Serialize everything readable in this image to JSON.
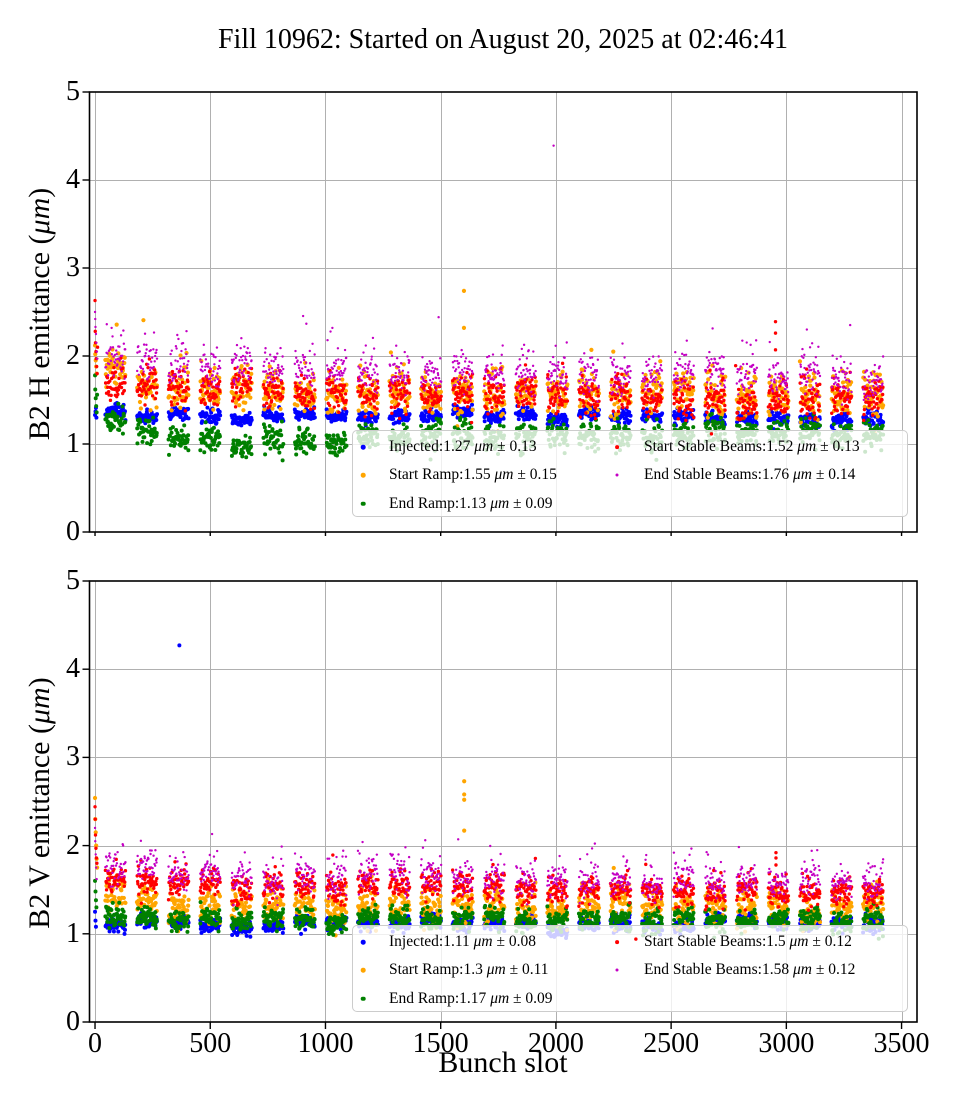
{
  "figure": {
    "title": "Fill 10962: Started on August 20, 2025 at 02:46:41",
    "unit": "μm",
    "grid_color": "#b0b0b0",
    "spine_color": "#000000",
    "legend_bg": "rgba(255,255,255,0.8)",
    "legend_border": "#cccccc",
    "colors": {
      "injected": "#0000ff",
      "start_ramp": "#ffa500",
      "end_ramp": "#008000",
      "start_stable": "#ff0000",
      "end_stable": "#c400c4"
    }
  },
  "chart_data": [
    {
      "type": "scatter",
      "ylabel": "B2 H emittance (μm)",
      "xlabel": "",
      "xlim": [
        -24,
        3567
      ],
      "ylim": [
        0,
        5
      ],
      "xticks": [
        0,
        500,
        1000,
        1500,
        2000,
        2500,
        3000,
        3500
      ],
      "yticks": [
        0,
        1,
        2,
        3,
        4,
        5
      ],
      "grid": true,
      "legend_position": "lower-right",
      "trains": {
        "first_slot": 45,
        "period": 137,
        "count": 25,
        "bunches": 44,
        "slot_step": 2
      },
      "series": [
        {
          "key": "injected",
          "legend": "Injected:1.27 μm ± 0.13",
          "mean": 1.27,
          "std": 0.13,
          "band": {
            "center": 1.32,
            "sigma": 0.038,
            "trend": -0.035,
            "start_boost": 0.03,
            "tail_prob": 0,
            "tail_scale": 0
          },
          "edge_stack": [
            [
              0,
              1.33
            ],
            [
              2,
              1.37
            ],
            [
              4,
              1.41
            ],
            [
              6,
              1.3
            ]
          ]
        },
        {
          "key": "start_ramp",
          "legend": "Start Ramp:1.55 μm ± 0.15",
          "mean": 1.55,
          "std": 0.15,
          "band": {
            "center": 1.56,
            "sigma": 0.12,
            "trend": -0.06,
            "start_boost": 0.22,
            "tail_prob": 0.05,
            "tail_scale": 0.15
          },
          "edge_stack": [
            [
              0,
              2.12
            ],
            [
              1,
              2.02
            ],
            [
              3,
              1.95
            ],
            [
              5,
              1.88
            ],
            [
              7,
              1.8
            ]
          ]
        },
        {
          "key": "end_ramp",
          "legend": "End Ramp:1.13 μm ± 0.09",
          "mean": 1.13,
          "std": 0.09,
          "band": {
            "center": 1.1,
            "sigma": 0.075,
            "trend": 0.06,
            "start_boost": 0.18,
            "dip_amp": -0.07,
            "dip_center": 5,
            "dip_width": 2.5
          },
          "edge_stack": [
            [
              0,
              1.78
            ],
            [
              1,
              1.62
            ],
            [
              3,
              1.52
            ],
            [
              5,
              1.43
            ],
            [
              7,
              1.36
            ],
            [
              9,
              1.56
            ]
          ]
        },
        {
          "key": "start_stable",
          "legend": "Start Stable Beams:1.52 μm ± 0.13",
          "mean": 1.52,
          "std": 0.13,
          "band": {
            "center": 1.55,
            "sigma": 0.095,
            "trend": -0.13,
            "start_boost": 0.1,
            "tail_prob": 0.06,
            "tail_scale": 0.12
          },
          "edge_stack": [
            [
              0,
              2.63
            ],
            [
              1,
              2.28
            ],
            [
              2,
              2.15
            ],
            [
              4,
              2.05
            ],
            [
              5,
              1.97
            ],
            [
              7,
              1.88
            ],
            [
              9,
              1.8
            ],
            [
              11,
              2.1
            ]
          ]
        },
        {
          "key": "end_stable",
          "legend": "End Stable Beams:1.76 μm ± 0.14",
          "mean": 1.76,
          "std": 0.14,
          "band": {
            "center": 1.8,
            "sigma": 0.1,
            "trend": -0.14,
            "start_boost": 0.08,
            "tail_prob": 0.18,
            "tail_scale": 0.15
          },
          "edge_stack": [
            [
              0,
              2.5
            ],
            [
              1,
              2.42
            ],
            [
              2,
              2.33
            ],
            [
              4,
              2.25
            ],
            [
              6,
              2.15
            ],
            [
              8,
              2.05
            ],
            [
              10,
              1.97
            ]
          ]
        }
      ],
      "outliers": [
        {
          "series": "start_ramp",
          "x": 1601,
          "y": 2.74
        },
        {
          "series": "start_ramp",
          "x": 1601,
          "y": 2.32
        },
        {
          "series": "end_stable",
          "x": 1990,
          "y": 4.39
        },
        {
          "series": "start_stable",
          "x": 2953,
          "y": 2.39
        },
        {
          "series": "start_stable",
          "x": 2953,
          "y": 2.26
        },
        {
          "series": "start_stable",
          "x": 2953,
          "y": 2.07
        },
        {
          "series": "start_stable",
          "x": 2780,
          "y": 1.89
        }
      ]
    },
    {
      "type": "scatter",
      "ylabel": "B2 V emittance (μm)",
      "xlabel": "Bunch slot",
      "xlim": [
        -24,
        3567
      ],
      "ylim": [
        0,
        5
      ],
      "xticks": [
        0,
        500,
        1000,
        1500,
        2000,
        2500,
        3000,
        3500
      ],
      "yticks": [
        0,
        1,
        2,
        3,
        4,
        5
      ],
      "grid": true,
      "legend_position": "lower-right",
      "trains": {
        "first_slot": 45,
        "period": 137,
        "count": 25,
        "bunches": 44,
        "slot_step": 2
      },
      "series": [
        {
          "key": "injected",
          "legend": "Injected:1.11 μm ± 0.08",
          "mean": 1.11,
          "std": 0.08,
          "band": {
            "center": 1.11,
            "sigma": 0.04,
            "trend": -0.01,
            "start_boost": 0,
            "tail_prob": 0,
            "tail_scale": 0
          },
          "edge_stack": [
            [
              0,
              1.25
            ],
            [
              2,
              1.15
            ],
            [
              4,
              1.08
            ]
          ]
        },
        {
          "key": "start_ramp",
          "legend": "Start Ramp:1.3 μm ± 0.11",
          "mean": 1.3,
          "std": 0.11,
          "band": {
            "center": 1.3,
            "sigma": 0.1,
            "trend": -0.02,
            "start_boost": 0.12,
            "tail_prob": 0.05,
            "tail_scale": 0.12
          },
          "edge_stack": [
            [
              0,
              2.54
            ],
            [
              1,
              2.3
            ],
            [
              3,
              2.15
            ],
            [
              5,
              2.0
            ],
            [
              7,
              1.85
            ],
            [
              9,
              1.75
            ]
          ]
        },
        {
          "key": "end_ramp",
          "legend": "End Ramp:1.17 μm ± 0.09",
          "mean": 1.17,
          "std": 0.09,
          "band": {
            "center": 1.17,
            "sigma": 0.065,
            "trend": 0,
            "start_boost": 0.06
          },
          "edge_stack": [
            [
              0,
              1.6
            ],
            [
              2,
              1.48
            ],
            [
              4,
              1.38
            ],
            [
              6,
              1.3
            ]
          ]
        },
        {
          "key": "start_stable",
          "legend": "Start Stable Beams:1.5 μm ± 0.12",
          "mean": 1.5,
          "std": 0.12,
          "band": {
            "center": 1.5,
            "sigma": 0.08,
            "trend": -0.09,
            "start_boost": 0.06,
            "tail_prob": 0.05,
            "tail_scale": 0.1
          },
          "edge_stack": [
            [
              0,
              2.44
            ],
            [
              1,
              2.3
            ],
            [
              2,
              2.12
            ],
            [
              4,
              1.97
            ],
            [
              6,
              1.86
            ],
            [
              8,
              1.8
            ]
          ]
        },
        {
          "key": "end_stable",
          "legend": "End Stable Beams:1.58 μm ± 0.12",
          "mean": 1.58,
          "std": 0.12,
          "band": {
            "center": 1.62,
            "sigma": 0.09,
            "trend": -0.1,
            "start_boost": 0.06,
            "tail_prob": 0.15,
            "tail_scale": 0.13
          },
          "edge_stack": [
            [
              0,
              2.2
            ],
            [
              1,
              2.05
            ],
            [
              3,
              1.9
            ],
            [
              5,
              1.75
            ],
            [
              7,
              1.62
            ]
          ]
        }
      ],
      "outliers": [
        {
          "series": "injected",
          "x": 366,
          "y": 4.27
        },
        {
          "series": "start_ramp",
          "x": 1602,
          "y": 2.73
        },
        {
          "series": "start_ramp",
          "x": 1602,
          "y": 2.58
        },
        {
          "series": "start_ramp",
          "x": 1602,
          "y": 2.52
        },
        {
          "series": "start_ramp",
          "x": 1602,
          "y": 2.17
        },
        {
          "series": "start_stable",
          "x": 2955,
          "y": 1.92
        },
        {
          "series": "start_stable",
          "x": 2955,
          "y": 1.86
        },
        {
          "series": "start_stable",
          "x": 2955,
          "y": 1.78
        },
        {
          "series": "start_stable",
          "x": 2347,
          "y": 0.94
        },
        {
          "series": "end_stable",
          "x": 2512,
          "y": 1.92
        }
      ]
    }
  ]
}
